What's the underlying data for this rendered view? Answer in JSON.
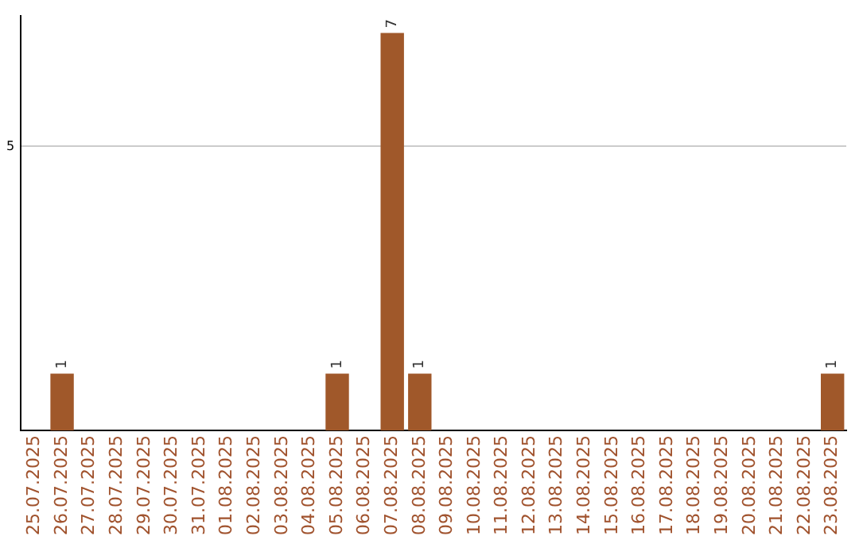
{
  "chart_data": {
    "type": "bar",
    "categories": [
      "25.07.2025",
      "26.07.2025",
      "27.07.2025",
      "28.07.2025",
      "29.07.2025",
      "30.07.2025",
      "31.07.2025",
      "01.08.2025",
      "02.08.2025",
      "03.08.2025",
      "04.08.2025",
      "05.08.2025",
      "06.08.2025",
      "07.08.2025",
      "08.08.2025",
      "09.08.2025",
      "10.08.2025",
      "11.08.2025",
      "12.08.2025",
      "13.08.2025",
      "14.08.2025",
      "15.08.2025",
      "16.08.2025",
      "17.08.2025",
      "18.08.2025",
      "19.08.2025",
      "20.08.2025",
      "21.08.2025",
      "22.08.2025",
      "23.08.2025"
    ],
    "values": [
      0,
      1,
      0,
      0,
      0,
      0,
      0,
      0,
      0,
      0,
      0,
      1,
      0,
      7,
      1,
      0,
      0,
      0,
      0,
      0,
      0,
      0,
      0,
      0,
      0,
      0,
      0,
      0,
      0,
      1
    ],
    "value_labels": [
      null,
      "1",
      null,
      null,
      null,
      null,
      null,
      null,
      null,
      null,
      null,
      "1",
      null,
      "7",
      "1",
      null,
      null,
      null,
      null,
      null,
      null,
      null,
      null,
      null,
      null,
      null,
      null,
      null,
      null,
      "1"
    ],
    "color": "#a0582a",
    "ylim": [
      0,
      7.3
    ],
    "yticks": [
      5
    ],
    "grid": "y"
  }
}
